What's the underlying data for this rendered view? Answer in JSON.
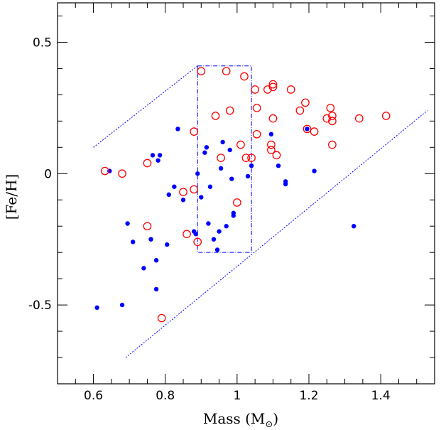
{
  "chart_data": {
    "type": "scatter",
    "title": "",
    "xlabel": "Mass (M",
    "xlabel_symbol": "⊙",
    "xlabel_close": ")",
    "ylabel": "[Fe/H]",
    "xlim": [
      0.5,
      1.55
    ],
    "ylim": [
      -0.8,
      0.65
    ],
    "x_ticks_major": [
      0.6,
      0.8,
      1.0,
      1.2,
      1.4
    ],
    "x_tick_labels": [
      "0.6",
      "0.8",
      "1",
      "1.2",
      "1.4"
    ],
    "x_ticks_minor_step": 0.05,
    "y_ticks_major": [
      -0.5,
      0,
      0.5
    ],
    "y_tick_labels": [
      "-0.5",
      "0",
      "0.5"
    ],
    "y_ticks_minor_step": 0.1,
    "grid": false,
    "colors": {
      "filled": "#0000ff",
      "open": "#ff0000",
      "guide": "#0000ff",
      "axes": "#000000"
    },
    "series": [
      {
        "marker": "filled-circle",
        "points": [
          [
            0.61,
            -0.51
          ],
          [
            0.645,
            0.01
          ],
          [
            0.68,
            -0.5
          ],
          [
            0.695,
            -0.19
          ],
          [
            0.71,
            -0.26
          ],
          [
            0.74,
            -0.36
          ],
          [
            0.76,
            -0.25
          ],
          [
            0.765,
            0.07
          ],
          [
            0.775,
            -0.44
          ],
          [
            0.775,
            -0.33
          ],
          [
            0.78,
            0.05
          ],
          [
            0.785,
            0.07
          ],
          [
            0.805,
            -0.27
          ],
          [
            0.81,
            -0.08
          ],
          [
            0.825,
            -0.05
          ],
          [
            0.835,
            0.17
          ],
          [
            0.85,
            -0.1
          ],
          [
            0.88,
            -0.22
          ],
          [
            0.885,
            -0.23
          ],
          [
            0.89,
            0.0
          ],
          [
            0.9,
            -0.09
          ],
          [
            0.91,
            0.08
          ],
          [
            0.915,
            0.1
          ],
          [
            0.92,
            -0.19
          ],
          [
            0.925,
            -0.05
          ],
          [
            0.935,
            -0.25
          ],
          [
            0.945,
            -0.29
          ],
          [
            0.95,
            -0.22
          ],
          [
            0.955,
            0.02
          ],
          [
            0.96,
            0.12
          ],
          [
            0.97,
            -0.2
          ],
          [
            0.98,
            0.09
          ],
          [
            0.985,
            -0.02
          ],
          [
            0.99,
            -0.16
          ],
          [
            0.99,
            -0.15
          ],
          [
            1.03,
            -0.01
          ],
          [
            1.04,
            0.03
          ],
          [
            1.095,
            0.15
          ],
          [
            1.115,
            0.03
          ],
          [
            1.135,
            -0.03
          ],
          [
            1.135,
            -0.04
          ],
          [
            1.195,
            0.17
          ],
          [
            1.215,
            0.01
          ],
          [
            1.325,
            -0.2
          ]
        ]
      },
      {
        "marker": "open-circle",
        "points": [
          [
            0.632,
            0.01
          ],
          [
            0.68,
            0.0
          ],
          [
            0.75,
            0.04
          ],
          [
            0.75,
            -0.2
          ],
          [
            0.79,
            -0.55
          ],
          [
            0.85,
            -0.07
          ],
          [
            0.86,
            -0.23
          ],
          [
            0.88,
            -0.06
          ],
          [
            0.88,
            0.16
          ],
          [
            0.89,
            -0.26
          ],
          [
            0.9,
            0.39
          ],
          [
            0.94,
            0.22
          ],
          [
            0.955,
            0.06
          ],
          [
            0.97,
            0.39
          ],
          [
            0.98,
            0.24
          ],
          [
            1.0,
            -0.11
          ],
          [
            1.01,
            0.11
          ],
          [
            1.02,
            0.37
          ],
          [
            1.025,
            0.06
          ],
          [
            1.04,
            0.06
          ],
          [
            1.05,
            0.32
          ],
          [
            1.055,
            0.25
          ],
          [
            1.055,
            0.15
          ],
          [
            1.085,
            0.32
          ],
          [
            1.095,
            0.11
          ],
          [
            1.095,
            0.09
          ],
          [
            1.1,
            0.21
          ],
          [
            1.1,
            0.33
          ],
          [
            1.1,
            0.34
          ],
          [
            1.11,
            0.07
          ],
          [
            1.15,
            0.32
          ],
          [
            1.175,
            0.24
          ],
          [
            1.19,
            0.27
          ],
          [
            1.195,
            0.17
          ],
          [
            1.215,
            0.16
          ],
          [
            1.25,
            0.21
          ],
          [
            1.26,
            0.25
          ],
          [
            1.265,
            0.22
          ],
          [
            1.265,
            0.2
          ],
          [
            1.265,
            0.11
          ],
          [
            1.34,
            0.21
          ],
          [
            1.415,
            0.22
          ]
        ]
      }
    ],
    "guide_lines": [
      {
        "style": "dotted",
        "points": [
          [
            0.6,
            0.1
          ],
          [
            0.89,
            0.41
          ]
        ]
      },
      {
        "style": "dotted",
        "points": [
          [
            0.69,
            -0.7
          ],
          [
            1.53,
            0.24
          ]
        ]
      }
    ],
    "box": {
      "style": "dash-dot",
      "x0": 0.89,
      "x1": 1.04,
      "y0": -0.3,
      "y1": 0.41
    }
  }
}
